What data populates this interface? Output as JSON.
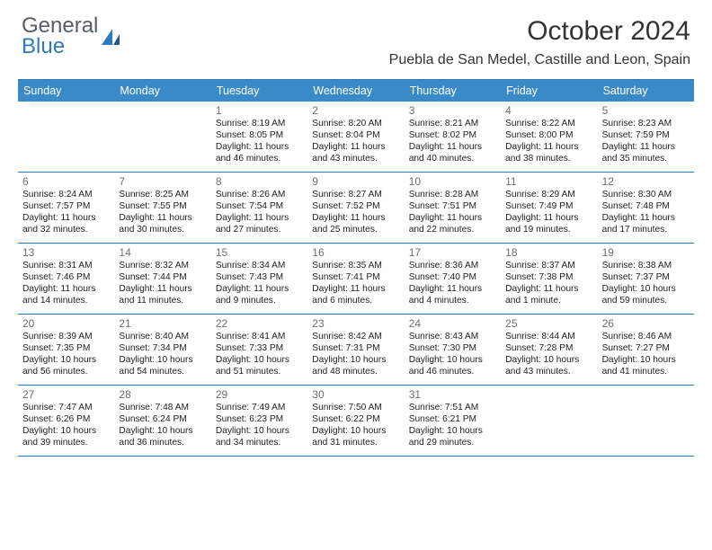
{
  "logo": {
    "line1": "General",
    "line2": "Blue"
  },
  "title": "October 2024",
  "location": "Puebla de San Medel, Castille and Leon, Spain",
  "header_bg": "#3b8ac8",
  "border_color": "#2d7ac0",
  "text_color": "#222222",
  "muted_color": "#6a6f74",
  "day_names": [
    "Sunday",
    "Monday",
    "Tuesday",
    "Wednesday",
    "Thursday",
    "Friday",
    "Saturday"
  ],
  "weeks": [
    [
      null,
      null,
      {
        "n": "1",
        "sr": "8:19 AM",
        "ss": "8:05 PM",
        "dl": "11 hours and 46 minutes."
      },
      {
        "n": "2",
        "sr": "8:20 AM",
        "ss": "8:04 PM",
        "dl": "11 hours and 43 minutes."
      },
      {
        "n": "3",
        "sr": "8:21 AM",
        "ss": "8:02 PM",
        "dl": "11 hours and 40 minutes."
      },
      {
        "n": "4",
        "sr": "8:22 AM",
        "ss": "8:00 PM",
        "dl": "11 hours and 38 minutes."
      },
      {
        "n": "5",
        "sr": "8:23 AM",
        "ss": "7:59 PM",
        "dl": "11 hours and 35 minutes."
      }
    ],
    [
      {
        "n": "6",
        "sr": "8:24 AM",
        "ss": "7:57 PM",
        "dl": "11 hours and 32 minutes."
      },
      {
        "n": "7",
        "sr": "8:25 AM",
        "ss": "7:55 PM",
        "dl": "11 hours and 30 minutes."
      },
      {
        "n": "8",
        "sr": "8:26 AM",
        "ss": "7:54 PM",
        "dl": "11 hours and 27 minutes."
      },
      {
        "n": "9",
        "sr": "8:27 AM",
        "ss": "7:52 PM",
        "dl": "11 hours and 25 minutes."
      },
      {
        "n": "10",
        "sr": "8:28 AM",
        "ss": "7:51 PM",
        "dl": "11 hours and 22 minutes."
      },
      {
        "n": "11",
        "sr": "8:29 AM",
        "ss": "7:49 PM",
        "dl": "11 hours and 19 minutes."
      },
      {
        "n": "12",
        "sr": "8:30 AM",
        "ss": "7:48 PM",
        "dl": "11 hours and 17 minutes."
      }
    ],
    [
      {
        "n": "13",
        "sr": "8:31 AM",
        "ss": "7:46 PM",
        "dl": "11 hours and 14 minutes."
      },
      {
        "n": "14",
        "sr": "8:32 AM",
        "ss": "7:44 PM",
        "dl": "11 hours and 11 minutes."
      },
      {
        "n": "15",
        "sr": "8:34 AM",
        "ss": "7:43 PM",
        "dl": "11 hours and 9 minutes."
      },
      {
        "n": "16",
        "sr": "8:35 AM",
        "ss": "7:41 PM",
        "dl": "11 hours and 6 minutes."
      },
      {
        "n": "17",
        "sr": "8:36 AM",
        "ss": "7:40 PM",
        "dl": "11 hours and 4 minutes."
      },
      {
        "n": "18",
        "sr": "8:37 AM",
        "ss": "7:38 PM",
        "dl": "11 hours and 1 minute."
      },
      {
        "n": "19",
        "sr": "8:38 AM",
        "ss": "7:37 PM",
        "dl": "10 hours and 59 minutes."
      }
    ],
    [
      {
        "n": "20",
        "sr": "8:39 AM",
        "ss": "7:35 PM",
        "dl": "10 hours and 56 minutes."
      },
      {
        "n": "21",
        "sr": "8:40 AM",
        "ss": "7:34 PM",
        "dl": "10 hours and 54 minutes."
      },
      {
        "n": "22",
        "sr": "8:41 AM",
        "ss": "7:33 PM",
        "dl": "10 hours and 51 minutes."
      },
      {
        "n": "23",
        "sr": "8:42 AM",
        "ss": "7:31 PM",
        "dl": "10 hours and 48 minutes."
      },
      {
        "n": "24",
        "sr": "8:43 AM",
        "ss": "7:30 PM",
        "dl": "10 hours and 46 minutes."
      },
      {
        "n": "25",
        "sr": "8:44 AM",
        "ss": "7:28 PM",
        "dl": "10 hours and 43 minutes."
      },
      {
        "n": "26",
        "sr": "8:46 AM",
        "ss": "7:27 PM",
        "dl": "10 hours and 41 minutes."
      }
    ],
    [
      {
        "n": "27",
        "sr": "7:47 AM",
        "ss": "6:26 PM",
        "dl": "10 hours and 39 minutes."
      },
      {
        "n": "28",
        "sr": "7:48 AM",
        "ss": "6:24 PM",
        "dl": "10 hours and 36 minutes."
      },
      {
        "n": "29",
        "sr": "7:49 AM",
        "ss": "6:23 PM",
        "dl": "10 hours and 34 minutes."
      },
      {
        "n": "30",
        "sr": "7:50 AM",
        "ss": "6:22 PM",
        "dl": "10 hours and 31 minutes."
      },
      {
        "n": "31",
        "sr": "7:51 AM",
        "ss": "6:21 PM",
        "dl": "10 hours and 29 minutes."
      },
      null,
      null
    ]
  ],
  "labels": {
    "sunrise": "Sunrise:",
    "sunset": "Sunset:",
    "daylight": "Daylight:"
  }
}
